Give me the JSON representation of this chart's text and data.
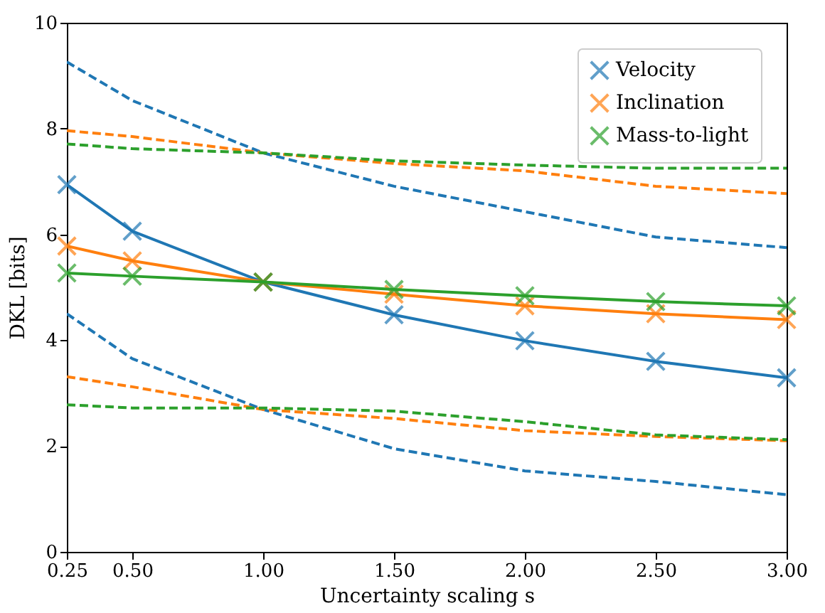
{
  "chart_data": {
    "type": "line",
    "x": [
      0.25,
      0.5,
      1.0,
      1.5,
      2.0,
      2.5,
      3.0
    ],
    "xlabel": "Uncertainty scaling s",
    "ylabel": "DKL [bits]",
    "xlim": [
      0.25,
      3.0
    ],
    "ylim": [
      0,
      10
    ],
    "xticks": [
      0.25,
      {
        "value": 0.5,
        "label": "0.50"
      },
      {
        "value": 1.0,
        "label": "1.00"
      },
      {
        "value": 1.5,
        "label": "1.50"
      },
      {
        "value": 2.0,
        "label": "2.00"
      },
      {
        "value": 2.5,
        "label": "2.50"
      },
      {
        "value": 3.0,
        "label": "3.00"
      }
    ],
    "yticks": [
      0,
      2,
      4,
      6,
      8,
      10
    ],
    "grid": false,
    "legend": "top right",
    "series": [
      {
        "name": "Velocity",
        "color": "#1f77b4",
        "marker": "cross",
        "line_style": "solid",
        "values": [
          6.94,
          6.06,
          5.1,
          4.48,
          3.99,
          3.6,
          3.29
        ]
      },
      {
        "name": "Inclination",
        "color": "#ff7f0e",
        "marker": "cross",
        "line_style": "solid",
        "values": [
          5.78,
          5.5,
          5.1,
          4.87,
          4.65,
          4.5,
          4.39
        ]
      },
      {
        "name": "Mass-to-light",
        "color": "#2ca02c",
        "marker": "cross",
        "line_style": "solid",
        "values": [
          5.27,
          5.21,
          5.1,
          4.96,
          4.84,
          4.73,
          4.65
        ]
      },
      {
        "color": "#1f77b4",
        "marker": "none",
        "line_style": "dashed",
        "values": [
          9.26,
          8.53,
          7.54,
          6.91,
          6.43,
          5.95,
          5.75
        ]
      },
      {
        "color": "#1f77b4",
        "marker": "none",
        "line_style": "dashed",
        "values": [
          4.5,
          3.65,
          2.69,
          1.95,
          1.53,
          1.33,
          1.08
        ]
      },
      {
        "color": "#ff7f0e",
        "marker": "none",
        "line_style": "dashed",
        "values": [
          7.96,
          7.85,
          7.54,
          7.34,
          7.2,
          6.91,
          6.77
        ]
      },
      {
        "color": "#ff7f0e",
        "marker": "none",
        "line_style": "dashed",
        "values": [
          3.31,
          3.12,
          2.69,
          2.52,
          2.29,
          2.18,
          2.1
        ]
      },
      {
        "color": "#2ca02c",
        "marker": "none",
        "line_style": "dashed",
        "values": [
          7.71,
          7.62,
          7.54,
          7.39,
          7.31,
          7.25,
          7.25
        ]
      },
      {
        "color": "#2ca02c",
        "marker": "none",
        "line_style": "dashed",
        "values": [
          2.78,
          2.72,
          2.72,
          2.66,
          2.46,
          2.21,
          2.12
        ]
      }
    ]
  }
}
